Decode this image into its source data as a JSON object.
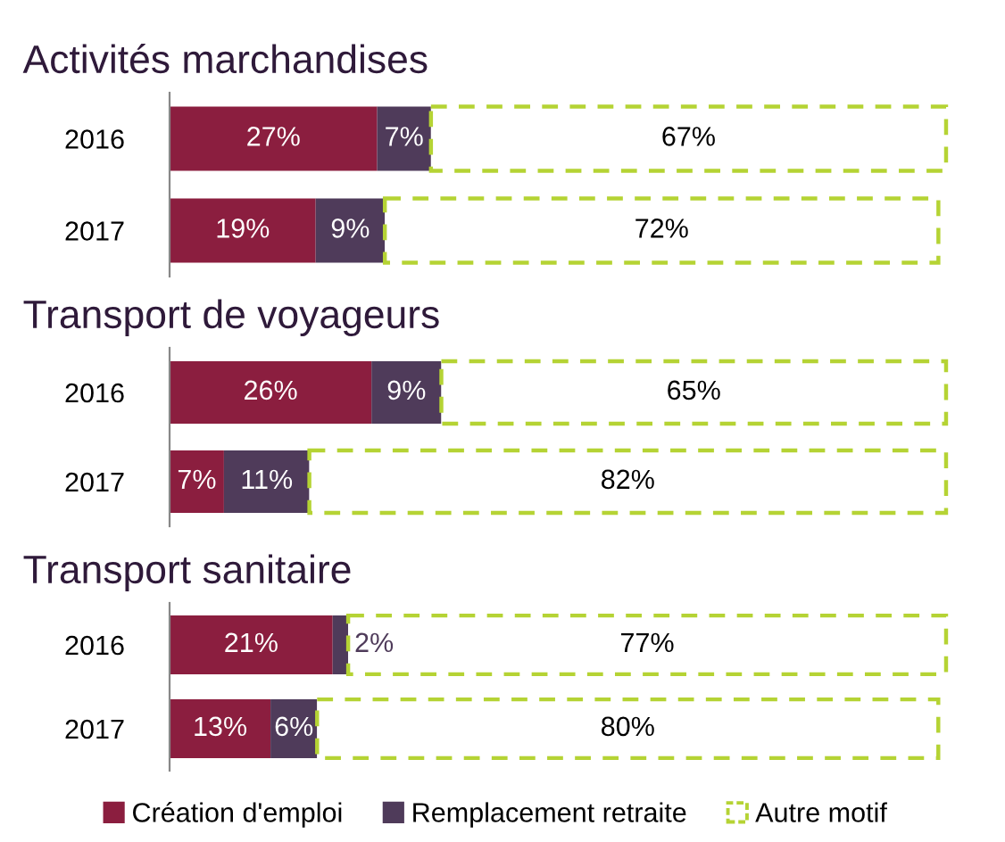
{
  "chart_data": [
    {
      "type": "bar",
      "orientation": "horizontal",
      "stacked": true,
      "title": "Activités marchandises",
      "categories": [
        "2016",
        "2017"
      ],
      "tick_labels": "y",
      "series": [
        {
          "color": "#8b1e3f",
          "values": [
            27,
            19
          ],
          "value_labels": [
            "27%",
            "19%"
          ]
        },
        {
          "color": "#4f3b5a",
          "values": [
            7,
            9
          ],
          "value_labels": [
            "7%",
            "9%"
          ]
        },
        {
          "color": "#b5d334",
          "values": [
            67,
            72
          ],
          "value_labels": [
            "67%",
            "72%"
          ]
        }
      ]
    },
    {
      "type": "bar",
      "orientation": "horizontal",
      "stacked": true,
      "title": "Transport de voyageurs",
      "categories": [
        "2016",
        "2017"
      ],
      "tick_labels": "y",
      "series": [
        {
          "color": "#8b1e3f",
          "values": [
            26,
            7
          ],
          "value_labels": [
            "26%",
            "7%"
          ]
        },
        {
          "color": "#4f3b5a",
          "values": [
            9,
            11
          ],
          "value_labels": [
            "9%",
            "11%"
          ]
        },
        {
          "color": "#b5d334",
          "values": [
            65,
            82
          ],
          "value_labels": [
            "65%",
            "82%"
          ]
        }
      ]
    },
    {
      "type": "bar",
      "orientation": "horizontal",
      "stacked": true,
      "title": "Transport sanitaire",
      "categories": [
        "2016",
        "2017"
      ],
      "tick_labels": "y",
      "legend": "bottom",
      "series": [
        {
          "name": "Création d'emploi",
          "color": "#8b1e3f",
          "values": [
            21,
            13
          ],
          "value_labels": [
            "21%",
            "13%"
          ]
        },
        {
          "name": "Remplacement retraite",
          "color": "#4f3b5a",
          "values": [
            2,
            6
          ],
          "value_labels": [
            "2%",
            "6%"
          ]
        },
        {
          "name": "Autre motif",
          "color": "#b5d334",
          "values": [
            77,
            80
          ],
          "value_labels": [
            "77%",
            "80%"
          ]
        }
      ]
    }
  ]
}
